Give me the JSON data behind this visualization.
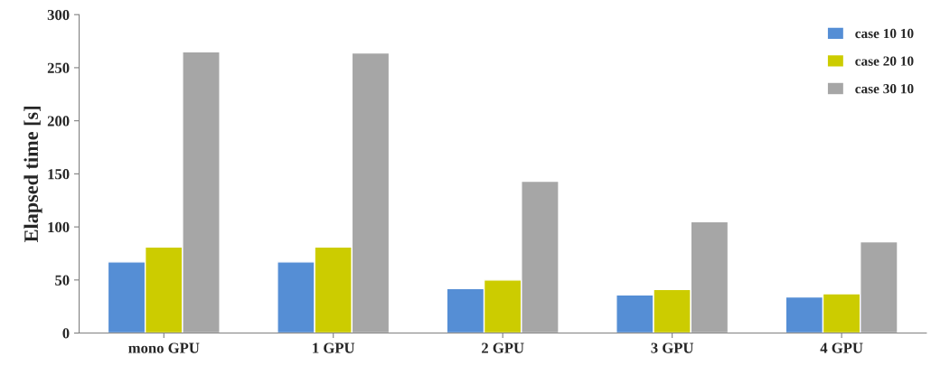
{
  "chart_data": {
    "type": "bar",
    "ylabel": "Elapsed time [s]",
    "categories": [
      "mono GPU",
      "1 GPU",
      "2 GPU",
      "3 GPU",
      "4 GPU"
    ],
    "series": [
      {
        "name": "case 10 10",
        "color": "#558ed5",
        "values": [
          67,
          67,
          42,
          36,
          34
        ]
      },
      {
        "name": "case 20 10",
        "color": "#cccc00",
        "values": [
          81,
          81,
          50,
          41,
          37
        ]
      },
      {
        "name": "case 30 10",
        "color": "#a6a6a6",
        "values": [
          265,
          264,
          143,
          105,
          86
        ]
      }
    ],
    "ylim": [
      0,
      300
    ],
    "yticks": [
      0,
      50,
      100,
      150,
      200,
      250,
      300
    ],
    "grid": false,
    "legend": "top right"
  }
}
